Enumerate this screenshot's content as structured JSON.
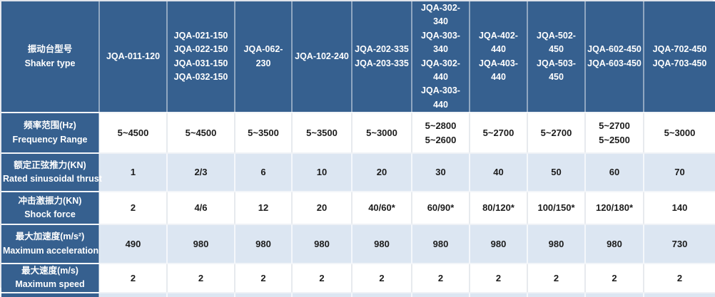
{
  "colors": {
    "header_bg": "#36608f",
    "shaded_row_bg": "#dce6f2",
    "white_row_bg": "#ffffff",
    "header_text": "#ffffff",
    "body_text": "#1c1c1c"
  },
  "table": {
    "header": {
      "label_zh": "振动台型号",
      "label_en": "Shaker type",
      "columns": [
        {
          "models": [
            "JQA-011-120"
          ]
        },
        {
          "models": [
            "JQA-021-150",
            "JQA-022-150",
            "JQA-031-150",
            "JQA-032-150"
          ]
        },
        {
          "models": [
            "JQA-062-230"
          ]
        },
        {
          "models": [
            "JQA-102-240"
          ]
        },
        {
          "models": [
            "JQA-202-335",
            "JQA-203-335"
          ]
        },
        {
          "models": [
            "JQA-302-340",
            "JQA-303-340",
            "JQA-302-440",
            "JQA-303-440"
          ]
        },
        {
          "models": [
            "JQA-402-440",
            "JQA-403-440"
          ]
        },
        {
          "models": [
            "JQA-502-450",
            "JQA-503-450"
          ]
        },
        {
          "models": [
            "JQA-602-450",
            "JQA-603-450"
          ]
        },
        {
          "models": [
            "JQA-702-450",
            "JQA-703-450"
          ]
        }
      ]
    },
    "rows": [
      {
        "label_zh": "频率范围(Hz)",
        "label_en": "Frequency Range",
        "values": [
          [
            "5~4500"
          ],
          [
            "5~4500"
          ],
          [
            "5~3500"
          ],
          [
            "5~3500"
          ],
          [
            "5~3000"
          ],
          [
            "5~2800",
            "5~2600"
          ],
          [
            "5~2700"
          ],
          [
            "5~2700"
          ],
          [
            "5~2700",
            "5~2500"
          ],
          [
            "5~3000"
          ]
        ]
      },
      {
        "label_zh": "额定正弦推力(KN)",
        "label_en": "Rated sinusoidal thrust",
        "values": [
          [
            "1"
          ],
          [
            "2/3"
          ],
          [
            "6"
          ],
          [
            "10"
          ],
          [
            "20"
          ],
          [
            "30"
          ],
          [
            "40"
          ],
          [
            "50"
          ],
          [
            "60"
          ],
          [
            "70"
          ]
        ]
      },
      {
        "label_zh": "冲击激振力(KN)",
        "label_en": "Shock force",
        "values": [
          [
            "2"
          ],
          [
            "4/6"
          ],
          [
            "12"
          ],
          [
            "20"
          ],
          [
            "40/60*"
          ],
          [
            "60/90*"
          ],
          [
            "80/120*"
          ],
          [
            "100/150*"
          ],
          [
            "120/180*"
          ],
          [
            "140"
          ]
        ]
      },
      {
        "label_zh": "最大加速度(m/s²)",
        "label_en": "Maximum acceleration",
        "values": [
          [
            "490"
          ],
          [
            "980"
          ],
          [
            "980"
          ],
          [
            "980"
          ],
          [
            "980"
          ],
          [
            "980"
          ],
          [
            "980"
          ],
          [
            "980"
          ],
          [
            "980"
          ],
          [
            "730"
          ]
        ]
      },
      {
        "label_zh": "最大速度(m/s)",
        "label_en": "Maximum speed",
        "values": [
          [
            "2"
          ],
          [
            "2"
          ],
          [
            "2"
          ],
          [
            "2"
          ],
          [
            "2"
          ],
          [
            "2"
          ],
          [
            "2"
          ],
          [
            "2"
          ],
          [
            "2"
          ],
          [
            "2"
          ]
        ]
      }
    ]
  }
}
